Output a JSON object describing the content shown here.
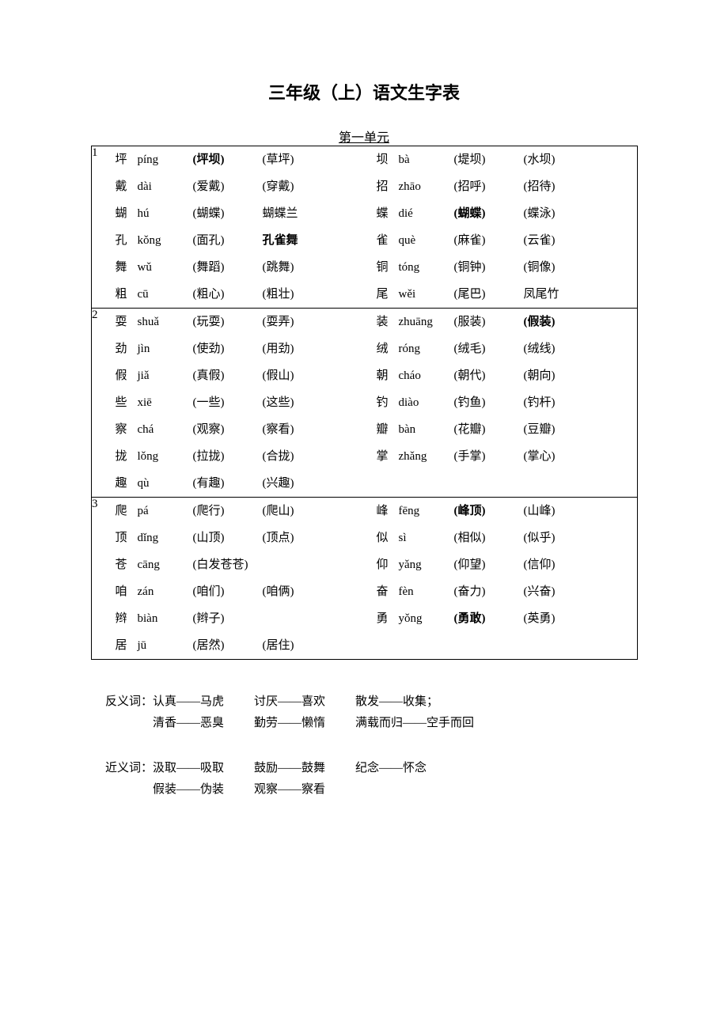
{
  "title": "三年级（上）语文生字表",
  "subtitle": "第一单元",
  "groups": [
    {
      "num": "1",
      "rows": [
        {
          "l": {
            "char": "坪",
            "pinyin": "píng",
            "w1": "(坪坝)",
            "w1b": true,
            "w2": "(草坪)"
          },
          "r": {
            "char": "坝",
            "pinyin": "bà",
            "w1": "(堤坝)",
            "w2": "(水坝)"
          }
        },
        {
          "l": {
            "char": "戴",
            "pinyin": "dài",
            "w1": "(爱戴)",
            "w2": "(穿戴)"
          },
          "r": {
            "char": "招",
            "pinyin": "zhāo",
            "w1": "(招呼)",
            "w2": "(招待)"
          }
        },
        {
          "l": {
            "char": "蝴",
            "pinyin": "hú",
            "w1": "(蝴蝶)",
            "w2": "蝴蝶兰"
          },
          "r": {
            "char": "蝶",
            "pinyin": "dié",
            "w1": "(蝴蝶)",
            "w1b": true,
            "w2": "(蝶泳)"
          }
        },
        {
          "l": {
            "char": "孔",
            "pinyin": "kǒng",
            "w1": "(面孔)",
            "w2": "孔雀舞",
            "w2b": true
          },
          "r": {
            "char": "雀",
            "pinyin": "què",
            "w1": "(麻雀)",
            "w2": "(云雀)"
          }
        },
        {
          "l": {
            "char": "舞",
            "pinyin": "wǔ",
            "w1": "(舞蹈)",
            "w2": "(跳舞)"
          },
          "r": {
            "char": "铜",
            "pinyin": "tóng",
            "w1": "(铜钟)",
            "w2": "(铜像)"
          }
        },
        {
          "l": {
            "char": "粗",
            "pinyin": "cū",
            "w1": "(粗心)",
            "w2": "(粗壮)"
          },
          "r": {
            "char": "尾",
            "pinyin": "wěi",
            "w1": "(尾巴)",
            "w2": "凤尾竹"
          }
        }
      ]
    },
    {
      "num": "2",
      "rows": [
        {
          "l": {
            "char": "耍",
            "pinyin": "shuǎ",
            "w1": "(玩耍)",
            "w2": "(耍弄)"
          },
          "r": {
            "char": "装",
            "pinyin": "zhuāng",
            "w1": "(服装)",
            "w2": "(假装)",
            "w2b": true
          }
        },
        {
          "l": {
            "char": "劲",
            "pinyin": "jìn",
            "w1": "(使劲)",
            "w2": "(用劲)"
          },
          "r": {
            "char": "绒",
            "pinyin": "róng",
            "w1": "(绒毛)",
            "w2": "(绒线)"
          }
        },
        {
          "l": {
            "char": "假",
            "pinyin": "jiǎ",
            "w1": "(真假)",
            "w2": "(假山)"
          },
          "r": {
            "char": "朝",
            "pinyin": "cháo",
            "w1": "(朝代)",
            "w2": "(朝向)"
          }
        },
        {
          "l": {
            "char": "些",
            "pinyin": " xiē",
            "w1": "(一些)",
            "w2": "(这些)"
          },
          "r": {
            "char": "钓",
            "pinyin": "diào",
            "w1": "(钓鱼)",
            "w2": "(钓杆)"
          }
        },
        {
          "l": {
            "char": "察",
            "pinyin": "chá",
            "w1": "(观察)",
            "w2": "(察看)"
          },
          "r": {
            "char": "瓣",
            "pinyin": "bàn",
            "w1": "(花瓣)",
            "w2": "(豆瓣)"
          }
        },
        {
          "l": {
            "char": "拢",
            "pinyin": "lǒng",
            "w1": "(拉拢)",
            "w2": "(合拢)"
          },
          "r": {
            "char": "掌",
            "pinyin": "zhǎng",
            "w1": "(手掌)",
            "w2": "(掌心)"
          }
        },
        {
          "l": {
            "char": "趣",
            "pinyin": "qù",
            "w1": "(有趣)",
            "w2": "(兴趣)"
          },
          "r": null
        }
      ]
    },
    {
      "num": "3",
      "rows": [
        {
          "l": {
            "char": "爬",
            "pinyin": "pá",
            "w1": "(爬行)",
            "w2": "(爬山)"
          },
          "r": {
            "char": "峰",
            "pinyin": "fēng",
            "w1": "(峰顶)",
            "w1b": true,
            "w2": "(山峰)"
          }
        },
        {
          "l": {
            "char": "顶",
            "pinyin": "dǐng",
            "w1": "(山顶)",
            "w2": "(顶点)"
          },
          "r": {
            "char": "似",
            "pinyin": "sì",
            "w1": "(相似)",
            "w2": "(似乎)"
          }
        },
        {
          "l": {
            "char": "苍",
            "pinyin": "cāng",
            "w1": "(白发苍苍)",
            "wide": true
          },
          "r": {
            "char": "仰",
            "pinyin": "yǎng",
            "w1": "(仰望)",
            "w2": "(信仰)"
          }
        },
        {
          "l": {
            "char": "咱",
            "pinyin": "zán",
            "w1": "(咱们)",
            "w2": "(咱俩)"
          },
          "r": {
            "char": "奋",
            "pinyin": "fèn",
            "w1": "(奋力)",
            "w2": "(兴奋)"
          }
        },
        {
          "l": {
            "char": "辫",
            "pinyin": "biàn",
            "w1": "(辫子)"
          },
          "r": {
            "char": "勇",
            "pinyin": "yǒng",
            "w1": "(勇敢)",
            "w1b": true,
            "w2": "(英勇)"
          }
        },
        {
          "l": {
            "char": "居",
            "pinyin": "jū",
            "w1": "(居然)",
            "w2": "(居住)"
          },
          "r": null
        }
      ]
    }
  ],
  "antonyms": {
    "label": "反义词：",
    "line1": [
      "认真——马虎",
      "讨厌——喜欢",
      "散发——收集；"
    ],
    "line2": [
      "清香——恶臭",
      "勤劳——懒惰",
      "满载而归——空手而回"
    ]
  },
  "synonyms": {
    "label": "近义词：",
    "line1": [
      "汲取——吸取",
      "鼓励——鼓舞",
      "纪念——怀念"
    ],
    "line2": [
      "假装——伪装",
      "观察——察看"
    ]
  }
}
